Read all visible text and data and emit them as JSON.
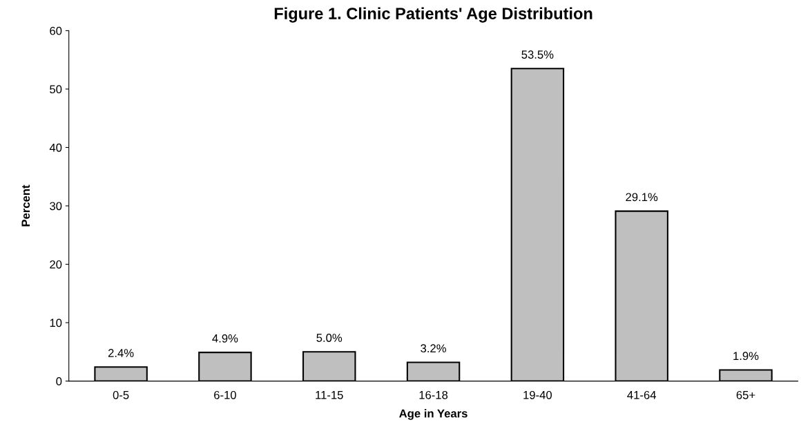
{
  "chart_data": {
    "type": "bar",
    "title": "Figure 1. Clinic Patients' Age Distribution",
    "xlabel": "Age in Years",
    "ylabel": "Percent",
    "categories": [
      "0-5",
      "6-10",
      "11-15",
      "16-18",
      "19-40",
      "41-64",
      "65+"
    ],
    "values": [
      2.4,
      4.9,
      5.0,
      3.2,
      53.5,
      29.1,
      1.9
    ],
    "value_labels": [
      "2.4%",
      "4.9%",
      "5.0%",
      "3.2%",
      "53.5%",
      "29.1%",
      "1.9%"
    ],
    "color": "#bfbfbf",
    "ylim": [
      0,
      60
    ],
    "yticks": [
      0,
      10,
      20,
      30,
      40,
      50,
      60
    ],
    "grid": false,
    "legend": false
  }
}
